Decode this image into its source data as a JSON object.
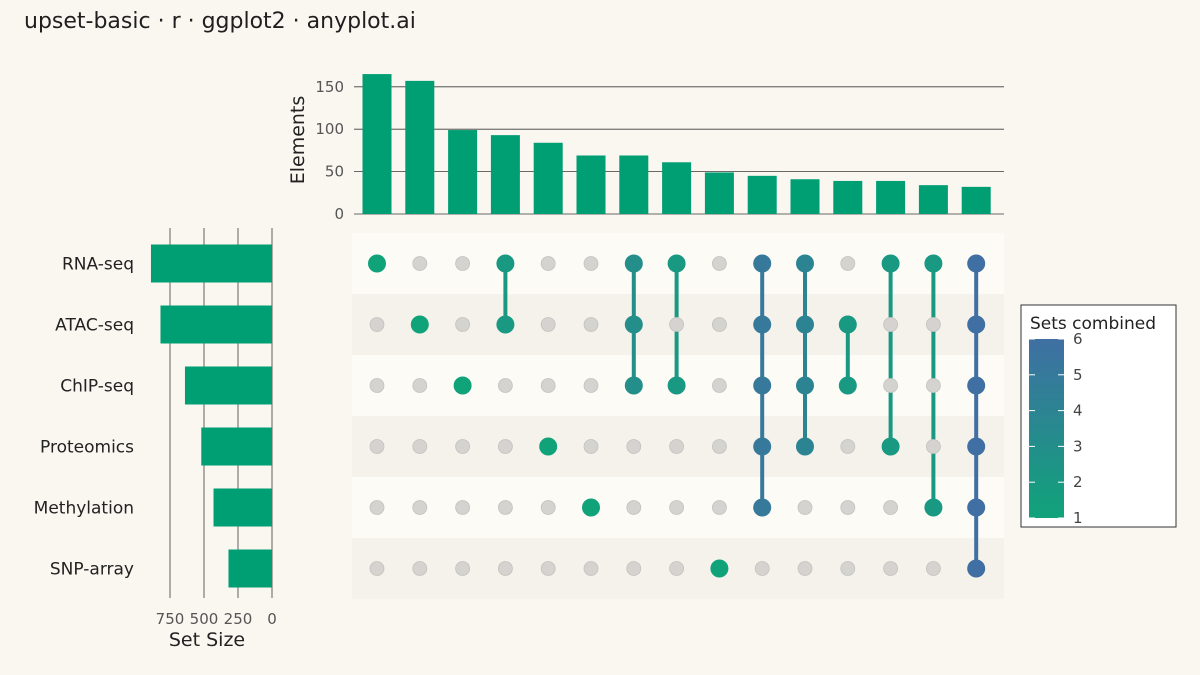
{
  "title": "upset-basic · r · ggplot2 · anyplot.ai",
  "chart_data": {
    "type": "upset",
    "sets": [
      "RNA-seq",
      "ATAC-seq",
      "ChIP-seq",
      "Proteomics",
      "Methylation",
      "SNP-array"
    ],
    "set_sizes": [
      890,
      820,
      640,
      520,
      430,
      320
    ],
    "set_size_axis": {
      "label": "Set Size",
      "ticks": [
        "750",
        "500",
        "250",
        "0"
      ],
      "range": [
        0,
        1000
      ],
      "reversed": true
    },
    "intersections": [
      {
        "sets": [
          "RNA-seq"
        ],
        "size": 165
      },
      {
        "sets": [
          "ATAC-seq"
        ],
        "size": 157
      },
      {
        "sets": [
          "ChIP-seq"
        ],
        "size": 99
      },
      {
        "sets": [
          "RNA-seq",
          "ATAC-seq"
        ],
        "size": 93
      },
      {
        "sets": [
          "Proteomics"
        ],
        "size": 84
      },
      {
        "sets": [
          "Methylation"
        ],
        "size": 69
      },
      {
        "sets": [
          "RNA-seq",
          "ATAC-seq",
          "ChIP-seq"
        ],
        "size": 69
      },
      {
        "sets": [
          "RNA-seq",
          "ChIP-seq"
        ],
        "size": 61
      },
      {
        "sets": [
          "SNP-array"
        ],
        "size": 49
      },
      {
        "sets": [
          "RNA-seq",
          "ATAC-seq",
          "ChIP-seq",
          "Proteomics",
          "Methylation"
        ],
        "size": 45
      },
      {
        "sets": [
          "RNA-seq",
          "ATAC-seq",
          "ChIP-seq",
          "Proteomics"
        ],
        "size": 41
      },
      {
        "sets": [
          "ATAC-seq",
          "ChIP-seq"
        ],
        "size": 39
      },
      {
        "sets": [
          "RNA-seq",
          "Proteomics"
        ],
        "size": 39
      },
      {
        "sets": [
          "RNA-seq",
          "Methylation"
        ],
        "size": 34
      },
      {
        "sets": [
          "RNA-seq",
          "ATAC-seq",
          "ChIP-seq",
          "Proteomics",
          "Methylation",
          "SNP-array"
        ],
        "size": 32
      }
    ],
    "intersection_axis": {
      "label": "Elements",
      "ticks": [
        0,
        50,
        100,
        150
      ],
      "range": [
        0,
        170
      ]
    },
    "legend": {
      "title": "Sets combined",
      "ticks": [
        "1",
        "2",
        "3",
        "4",
        "5",
        "6"
      ],
      "placement": "right",
      "colors": [
        "#10a37a",
        "#3f6fa3"
      ]
    },
    "grid": true,
    "bar_color": "#009e73",
    "inactive_dot_color": "#d5d3cf",
    "row_band_colors": [
      "#fdfbf6",
      "#f5f2eb"
    ]
  }
}
